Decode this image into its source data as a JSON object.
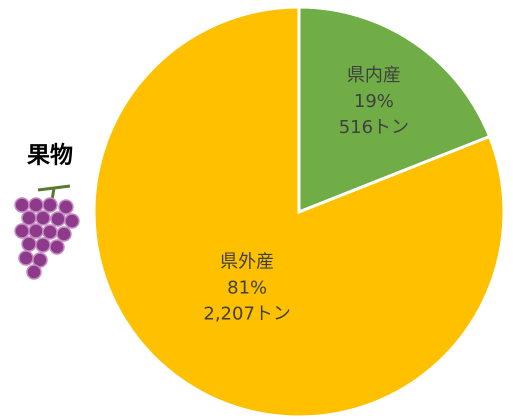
{
  "chart_data": {
    "type": "pie",
    "title": "果物",
    "categories": [
      "県内産",
      "県外産"
    ],
    "values": [
      19,
      81
    ],
    "value_labels": [
      "19%",
      "81%"
    ],
    "amount_labels": [
      "516トン",
      "2,207トン"
    ],
    "colors": [
      "#70ad47",
      "#ffc000"
    ]
  }
}
